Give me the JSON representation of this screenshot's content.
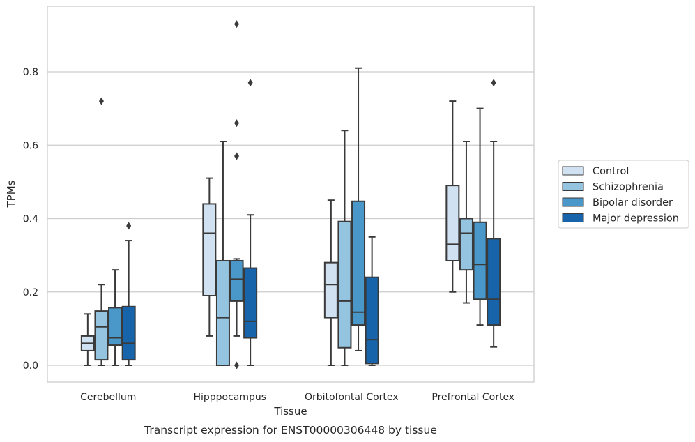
{
  "chart_data": {
    "type": "boxplot",
    "xlabel": "Tissue",
    "ylabel": "TPMs",
    "caption": "Transcript expression for ENST00000306448 by tissue",
    "ylim": [
      -0.045,
      0.97
    ],
    "yticks": [
      0.0,
      0.2,
      0.4,
      0.6,
      0.8
    ],
    "ytick_labels": [
      "0.0",
      "0.2",
      "0.4",
      "0.6",
      "0.8"
    ],
    "grid": "horizontal",
    "legend_position": "right",
    "categories": [
      "Cerebellum",
      "Hipppocampus",
      "Orbitofontal Cortex",
      "Prefrontal Cortex"
    ],
    "series": [
      {
        "name": "Control",
        "color": "#d0e1f2",
        "boxes": [
          {
            "whislo": 0.0,
            "q1": 0.04,
            "med": 0.06,
            "q3": 0.08,
            "whishi": 0.14,
            "fliers": []
          },
          {
            "whislo": 0.08,
            "q1": 0.19,
            "med": 0.36,
            "q3": 0.44,
            "whishi": 0.51,
            "fliers": []
          },
          {
            "whislo": 0.0,
            "q1": 0.13,
            "med": 0.22,
            "q3": 0.28,
            "whishi": 0.45,
            "fliers": []
          },
          {
            "whislo": 0.2,
            "q1": 0.285,
            "med": 0.33,
            "q3": 0.49,
            "whishi": 0.72,
            "fliers": []
          }
        ]
      },
      {
        "name": "Schizophrenia",
        "color": "#94c4df",
        "boxes": [
          {
            "whislo": 0.0,
            "q1": 0.015,
            "med": 0.105,
            "q3": 0.148,
            "whishi": 0.22,
            "fliers": [
              0.72
            ]
          },
          {
            "whislo": 0.0,
            "q1": 0.0,
            "med": 0.13,
            "q3": 0.285,
            "whishi": 0.61,
            "fliers": []
          },
          {
            "whislo": 0.0,
            "q1": 0.048,
            "med": 0.175,
            "q3": 0.392,
            "whishi": 0.64,
            "fliers": []
          },
          {
            "whislo": 0.17,
            "q1": 0.26,
            "med": 0.36,
            "q3": 0.4,
            "whishi": 0.61,
            "fliers": []
          }
        ]
      },
      {
        "name": "Bipolar disorder",
        "color": "#4a98c9",
        "boxes": [
          {
            "whislo": 0.0,
            "q1": 0.055,
            "med": 0.075,
            "q3": 0.157,
            "whishi": 0.26,
            "fliers": []
          },
          {
            "whislo": 0.08,
            "q1": 0.175,
            "med": 0.235,
            "q3": 0.285,
            "whishi": 0.29,
            "fliers": [
              0.0,
              0.57,
              0.66,
              0.93
            ]
          },
          {
            "whislo": 0.04,
            "q1": 0.11,
            "med": 0.145,
            "q3": 0.447,
            "whishi": 0.81,
            "fliers": []
          },
          {
            "whislo": 0.11,
            "q1": 0.18,
            "med": 0.275,
            "q3": 0.39,
            "whishi": 0.7,
            "fliers": []
          }
        ]
      },
      {
        "name": "Major depression",
        "color": "#1764ab",
        "boxes": [
          {
            "whislo": 0.0,
            "q1": 0.015,
            "med": 0.06,
            "q3": 0.16,
            "whishi": 0.34,
            "fliers": [
              0.38
            ]
          },
          {
            "whislo": 0.0,
            "q1": 0.075,
            "med": 0.12,
            "q3": 0.265,
            "whishi": 0.41,
            "fliers": [
              0.77
            ]
          },
          {
            "whislo": 0.0,
            "q1": 0.005,
            "med": 0.07,
            "q3": 0.24,
            "whishi": 0.35,
            "fliers": []
          },
          {
            "whislo": 0.05,
            "q1": 0.11,
            "med": 0.18,
            "q3": 0.345,
            "whishi": 0.61,
            "fliers": [
              0.77
            ]
          }
        ]
      }
    ]
  }
}
